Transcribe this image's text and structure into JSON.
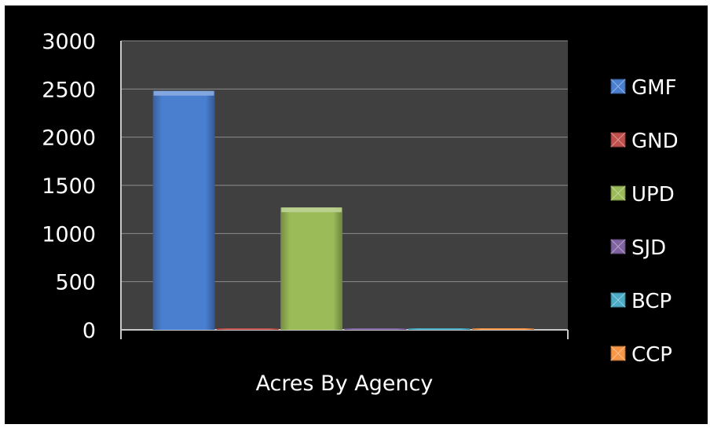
{
  "chart_data": {
    "type": "bar",
    "categories": [
      "Acres By Agency"
    ],
    "series": [
      {
        "name": "GMF",
        "values": [
          2480
        ]
      },
      {
        "name": "GND",
        "values": [
          5
        ]
      },
      {
        "name": "UPD",
        "values": [
          1270
        ]
      },
      {
        "name": "SJD",
        "values": [
          3
        ]
      },
      {
        "name": "BCP",
        "values": [
          0
        ]
      },
      {
        "name": "CCP",
        "values": [
          8
        ]
      }
    ],
    "colors": [
      "#4a7fd0",
      "#c0504d",
      "#9bbb59",
      "#8064a2",
      "#4bacc6",
      "#f79646"
    ],
    "ylim": [
      0,
      3000
    ],
    "yticks": [
      0,
      500,
      1000,
      1500,
      2000,
      2500,
      3000
    ],
    "grid": true,
    "legend": "right",
    "plot_background": "#404040",
    "page_background": "#000000"
  }
}
